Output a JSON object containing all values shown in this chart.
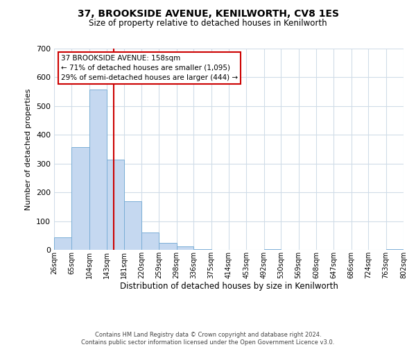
{
  "title": "37, BROOKSIDE AVENUE, KENILWORTH, CV8 1ES",
  "subtitle": "Size of property relative to detached houses in Kenilworth",
  "xlabel": "Distribution of detached houses by size in Kenilworth",
  "ylabel": "Number of detached properties",
  "bin_edges": [
    26,
    65,
    104,
    143,
    181,
    220,
    259,
    298,
    336,
    375,
    414,
    453,
    492,
    530,
    569,
    608,
    647,
    686,
    724,
    763,
    802
  ],
  "bar_heights": [
    44,
    358,
    558,
    315,
    168,
    60,
    25,
    12,
    3,
    0,
    0,
    0,
    2,
    0,
    0,
    0,
    0,
    0,
    0,
    2
  ],
  "bar_color": "#c5d8f0",
  "bar_edge_color": "#7aaed6",
  "property_line_x": 158,
  "property_line_color": "#cc0000",
  "ylim": [
    0,
    700
  ],
  "yticks": [
    0,
    100,
    200,
    300,
    400,
    500,
    600,
    700
  ],
  "annotation_text": "37 BROOKSIDE AVENUE: 158sqm\n← 71% of detached houses are smaller (1,095)\n29% of semi-detached houses are larger (444) →",
  "annotation_box_color": "#ffffff",
  "annotation_box_edge_color": "#cc0000",
  "footer_line1": "Contains HM Land Registry data © Crown copyright and database right 2024.",
  "footer_line2": "Contains public sector information licensed under the Open Government Licence v3.0.",
  "background_color": "#ffffff",
  "grid_color": "#d0dce8"
}
